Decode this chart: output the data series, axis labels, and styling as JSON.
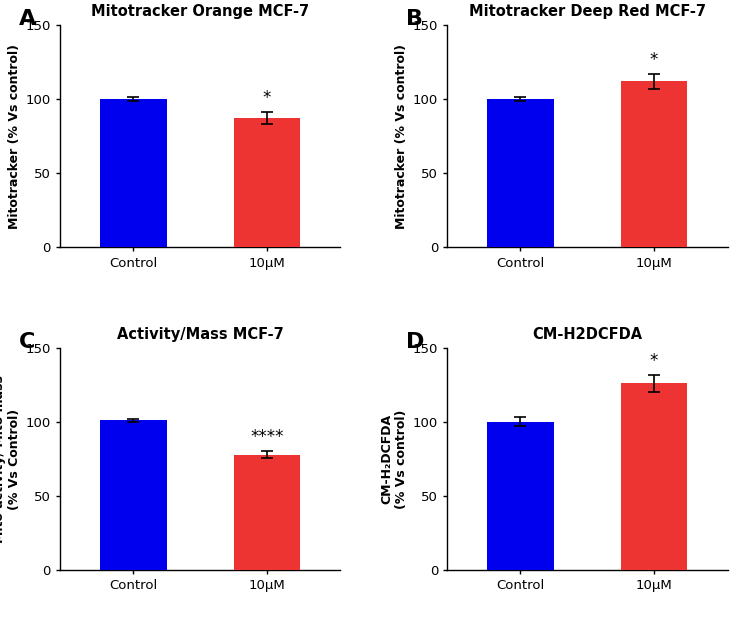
{
  "panels": [
    {
      "label": "A",
      "title": "Mitotracker Orange MCF-7",
      "ylabel": "Mitotracker (% Vs control)",
      "categories": [
        "Control",
        "10μM"
      ],
      "values": [
        100,
        87
      ],
      "errors": [
        1.5,
        4.0
      ],
      "colors": [
        "#0000EE",
        "#EE3333"
      ],
      "significance": [
        "",
        "*"
      ],
      "sig_color": "#000000",
      "ylim": [
        0,
        150
      ],
      "yticks": [
        0,
        50,
        100,
        150
      ]
    },
    {
      "label": "B",
      "title": "Mitotracker Deep Red MCF-7",
      "ylabel": "Mitotracker (% Vs control)",
      "categories": [
        "Control",
        "10μM"
      ],
      "values": [
        100,
        112
      ],
      "errors": [
        1.5,
        5.0
      ],
      "colors": [
        "#0000EE",
        "#EE3333"
      ],
      "significance": [
        "",
        "*"
      ],
      "sig_color": "#000000",
      "ylim": [
        0,
        150
      ],
      "yticks": [
        0,
        50,
        100,
        150
      ]
    },
    {
      "label": "C",
      "title": "Activity/Mass MCF-7",
      "ylabel": "Mito activity/ Mito mass\n(% Vs Control)",
      "categories": [
        "Control",
        "10μM"
      ],
      "values": [
        101,
        78
      ],
      "errors": [
        1.2,
        2.5
      ],
      "colors": [
        "#0000EE",
        "#EE3333"
      ],
      "significance": [
        "",
        "****"
      ],
      "sig_color": "#000000",
      "ylim": [
        0,
        150
      ],
      "yticks": [
        0,
        50,
        100,
        150
      ]
    },
    {
      "label": "D",
      "title": "CM-H2DCFDA",
      "ylabel": "CM-H₂DCFDA\n(% Vs control)",
      "categories": [
        "Control",
        "10μM"
      ],
      "values": [
        100,
        126
      ],
      "errors": [
        3.0,
        5.5
      ],
      "colors": [
        "#0000EE",
        "#EE3333"
      ],
      "significance": [
        "",
        "*"
      ],
      "sig_color": "#000000",
      "ylim": [
        0,
        150
      ],
      "yticks": [
        0,
        50,
        100,
        150
      ]
    }
  ],
  "bar_width": 0.5,
  "background_color": "#FFFFFF",
  "title_fontsize": 10.5,
  "label_fontsize": 14,
  "sig_fontsize": 12,
  "tick_fontsize": 9.5,
  "axis_label_fontsize": 9.0,
  "panel_label_fontsize": 16
}
